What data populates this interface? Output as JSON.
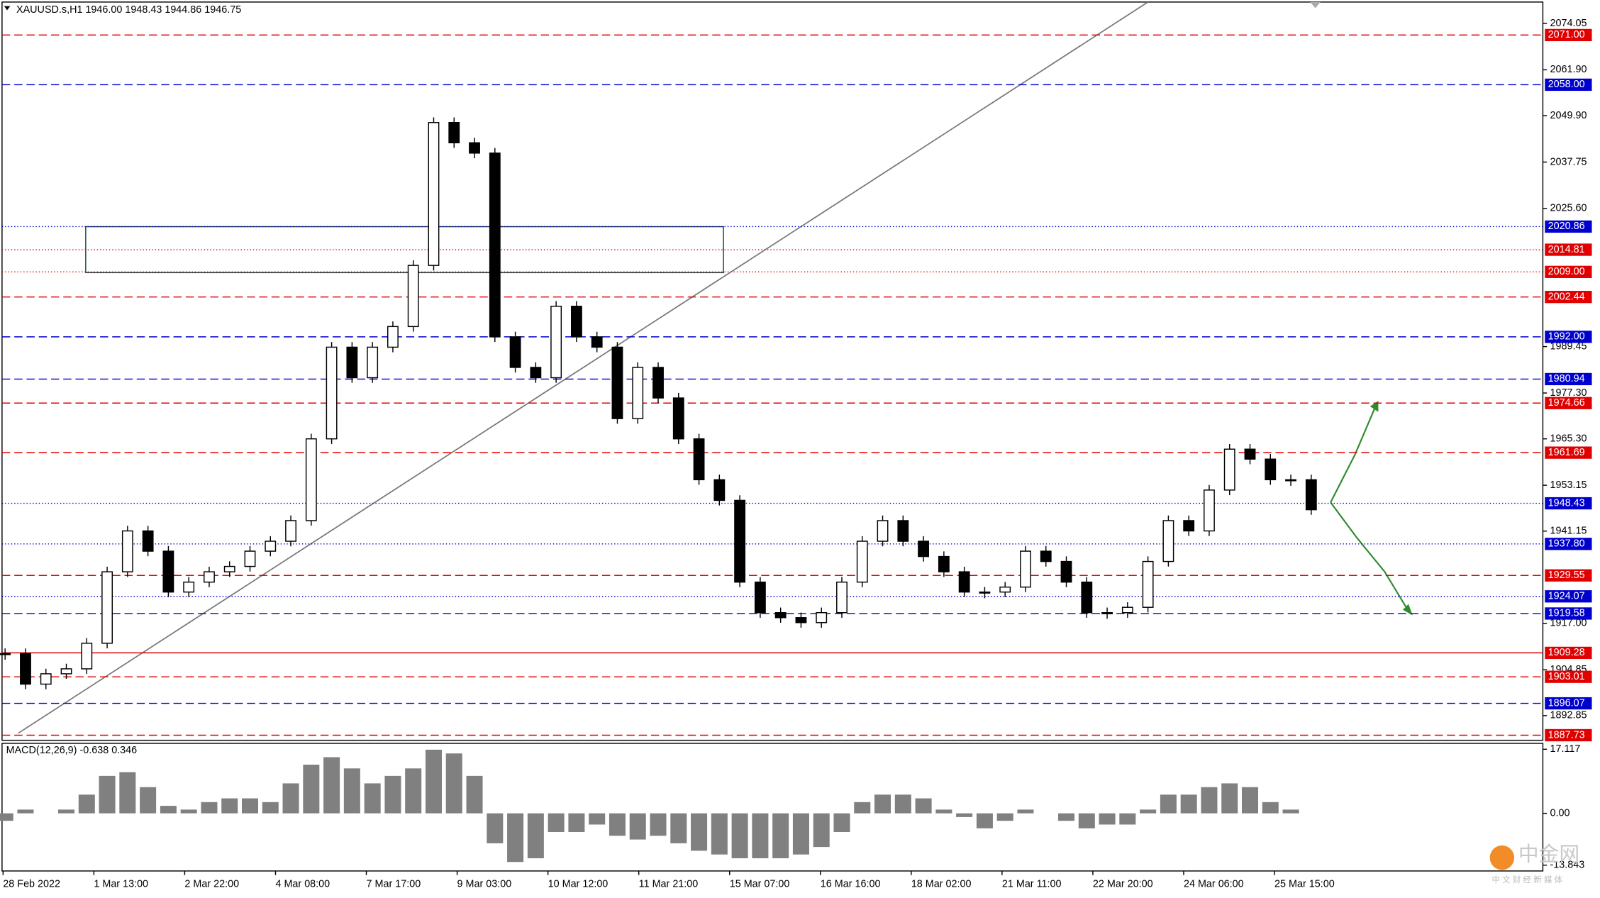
{
  "chart_data": {
    "type": "candlestick",
    "title": "XAUUSD.s,H1  1946.00 1948.43 1944.86 1946.75",
    "categories": [
      "28 Feb 2022",
      "1 Mar 13:00",
      "2 Mar 22:00",
      "4 Mar 08:00",
      "7 Mar 17:00",
      "9 Mar 03:00",
      "10 Mar 12:00",
      "11 Mar 21:00",
      "15 Mar 07:00",
      "16 Mar 16:00",
      "18 Mar 02:00",
      "21 Mar 11:00",
      "22 Mar 20:00",
      "24 Mar 06:00",
      "25 Mar 15:00"
    ],
    "close": [
      1909.1,
      1901.1,
      1903.8,
      1905.1,
      1911.8,
      1930.5,
      1941.2,
      1935.9,
      1925.2,
      1927.8,
      1930.5,
      1931.9,
      1935.9,
      1938.5,
      1943.9,
      1965.3,
      1989.3,
      1981.3,
      1989.3,
      1994.7,
      2010.7,
      2048.1,
      2042.8,
      2040.1,
      1992.0,
      1984.0,
      1981.3,
      2000.0,
      1992.0,
      1989.3,
      1970.6,
      1984.0,
      1976.0,
      1965.3,
      1954.6,
      1949.2,
      1927.8,
      1919.8,
      1918.5,
      1917.2,
      1919.8,
      1927.8,
      1938.5,
      1943.9,
      1938.5,
      1934.5,
      1930.5,
      1925.2,
      1925.2,
      1926.5,
      1935.9,
      1933.2,
      1927.8,
      1919.8,
      1919.8,
      1921.2,
      1933.2,
      1943.9,
      1941.2,
      1951.9,
      1962.6,
      1960.0,
      1954.6,
      1954.6,
      1946.75
    ],
    "color": "#000000",
    "ylim": [
      1886.4,
      2077.5
    ],
    "yticks": [
      {
        "value": 2074.05,
        "label": "2074.05"
      },
      {
        "value": 2061.9,
        "label": "2061.90"
      },
      {
        "value": 2049.9,
        "label": "2049.90"
      },
      {
        "value": 2037.75,
        "label": "2037.75"
      },
      {
        "value": 2025.6,
        "label": "2025.60"
      },
      {
        "value": 1989.45,
        "label": "1989.45"
      },
      {
        "value": 1977.3,
        "label": "1977.30"
      },
      {
        "value": 1965.3,
        "label": "1965.30"
      },
      {
        "value": 1953.15,
        "label": "1953.15"
      },
      {
        "value": 1941.15,
        "label": "1941.15"
      },
      {
        "value": 1917,
        "label": "1917.00"
      },
      {
        "value": 1904.85,
        "label": "1904.85"
      },
      {
        "value": 1892.85,
        "label": "1892.85"
      }
    ],
    "levels": [
      {
        "value": 2071,
        "label": "2071.00",
        "color": "#e00000",
        "style": "dashed"
      },
      {
        "value": 2058,
        "label": "2058.00",
        "color": "#0000cd",
        "style": "dashed"
      },
      {
        "value": 2020.86,
        "label": "2020.86",
        "color": "#0000cd",
        "style": "dotted"
      },
      {
        "value": 2014.81,
        "label": "2014.81",
        "color": "#e00000",
        "style": "dotted"
      },
      {
        "value": 2009,
        "label": "2009.00",
        "color": "#e00000",
        "style": "dotted"
      },
      {
        "value": 2002.44,
        "label": "2002.44",
        "color": "#e00000",
        "style": "dashed"
      },
      {
        "value": 1992,
        "label": "1992.00",
        "color": "#0000cd",
        "style": "dashed"
      },
      {
        "value": 1980.94,
        "label": "1980.94",
        "color": "#0000cd",
        "style": "dashed"
      },
      {
        "value": 1974.66,
        "label": "1974.66",
        "color": "#e00000",
        "style": "dashed"
      },
      {
        "value": 1961.69,
        "label": "1961.69",
        "color": "#e00000",
        "style": "dashed"
      },
      {
        "value": 1948.43,
        "label": "1948.43",
        "color": "#0000cd",
        "style": "dotted"
      },
      {
        "value": 1937.8,
        "label": "1937.80",
        "color": "#0000cd",
        "style": "dotted"
      },
      {
        "value": 1929.55,
        "label": "1929.55",
        "color": "#e00000",
        "style": "dashed"
      },
      {
        "value": 1924.07,
        "label": "1924.07",
        "color": "#0000cd",
        "style": "dotted"
      },
      {
        "value": 1919.58,
        "label": "1919.58",
        "color": "#0000cd",
        "style": "dashed"
      },
      {
        "value": 1909.28,
        "label": "1909.28",
        "color": "#e00000",
        "style": "solid"
      },
      {
        "value": 1903.01,
        "label": "1903.01",
        "color": "#e00000",
        "style": "dashed"
      },
      {
        "value": 1896.07,
        "label": "1896.07",
        "color": "#0000cd",
        "style": "dashed"
      },
      {
        "value": 1887.73,
        "label": "1887.73",
        "color": "#e00000",
        "style": "dashed"
      }
    ],
    "macd": {
      "label": "MACD(12,26,9) -0.638 0.346",
      "color": "#808080",
      "values": [
        -2,
        1,
        0,
        1,
        5,
        10,
        11,
        7,
        2,
        1,
        3,
        4,
        4,
        3,
        8,
        13,
        15,
        12,
        8,
        10,
        12,
        17,
        16,
        10,
        -8,
        -13,
        -12,
        -5,
        -5,
        -3,
        -6,
        -7,
        -6,
        -8,
        -10,
        -11,
        -12,
        -12,
        -12,
        -11,
        -9,
        -5,
        3,
        5,
        5,
        4,
        1,
        -1,
        -4,
        -2,
        1,
        0,
        -2,
        -4,
        -3,
        -3,
        1,
        5,
        5,
        7,
        8,
        7,
        3,
        1,
        0
      ],
      "ylim": [
        -15.4,
        18.7
      ],
      "yticks": [
        17.117,
        {
          "value": 0,
          "label": "0.00"
        },
        -13.843
      ]
    },
    "watermark": "中金网",
    "watermark_sub": "中 文 财 经 新 媒 体"
  }
}
